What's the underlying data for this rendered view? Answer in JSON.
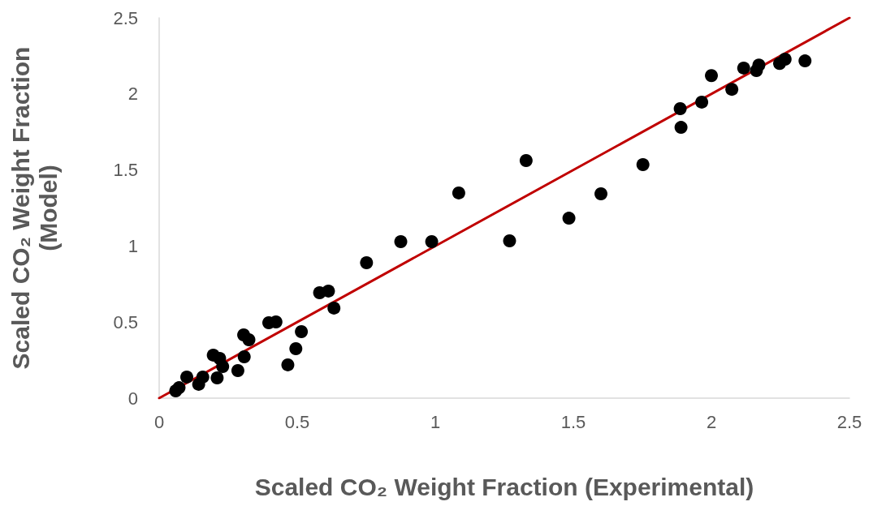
{
  "chart_data": {
    "type": "scatter",
    "xlabel": "Scaled CO₂ Weight Fraction (Experimental)",
    "ylabel": "Scaled CO₂ Weight Fraction\n(Model)",
    "xlim": [
      0,
      2.5
    ],
    "xticks": [
      0,
      0.5,
      1,
      1.5,
      2,
      2.5
    ],
    "ylim": [
      0,
      2.5
    ],
    "yticks": [
      0,
      0.5,
      1,
      1.5,
      2,
      2.5
    ],
    "grid": false,
    "marker": "circle",
    "series": [
      {
        "color": "#000000",
        "x": [
          0.06,
          0.072,
          0.1,
          0.143,
          0.158,
          0.196,
          0.219,
          0.21,
          0.23,
          0.285,
          0.308,
          0.306,
          0.325,
          0.397,
          0.423,
          0.466,
          0.495,
          0.515,
          0.581,
          0.613,
          0.633,
          0.751,
          0.875,
          0.987,
          1.085,
          1.269,
          1.329,
          1.484,
          1.6,
          1.752,
          1.887,
          1.89,
          1.965,
          2.0,
          2.074,
          2.117,
          2.163,
          2.172,
          2.247,
          2.267,
          2.339
        ],
        "values": [
          0.048,
          0.069,
          0.139,
          0.091,
          0.139,
          0.283,
          0.261,
          0.133,
          0.208,
          0.181,
          0.272,
          0.416,
          0.384,
          0.496,
          0.501,
          0.219,
          0.325,
          0.437,
          0.693,
          0.704,
          0.592,
          0.89,
          1.029,
          1.029,
          1.349,
          1.034,
          1.562,
          1.183,
          1.343,
          1.535,
          1.903,
          1.78,
          1.946,
          2.12,
          2.03,
          2.17,
          2.153,
          2.19,
          2.2,
          2.228,
          2.217
        ]
      },
      {
        "type": "line",
        "color": "#c00000",
        "marker": "none",
        "line_style": "solid",
        "x": [
          0,
          2.5
        ],
        "values": [
          0,
          2.5
        ]
      }
    ]
  }
}
